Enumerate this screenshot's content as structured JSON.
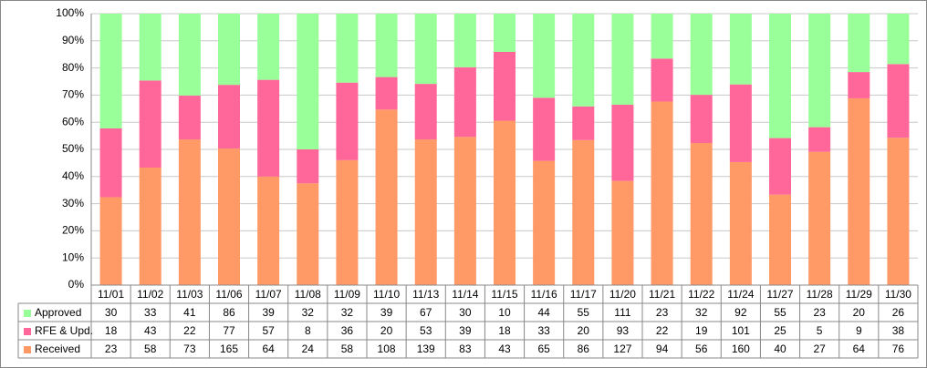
{
  "chart_data": {
    "type": "bar",
    "stack": "percent",
    "categories": [
      "11/01",
      "11/02",
      "11/03",
      "11/06",
      "11/07",
      "11/08",
      "11/09",
      "11/10",
      "11/13",
      "11/14",
      "11/15",
      "11/16",
      "11/17",
      "11/20",
      "11/21",
      "11/22",
      "11/24",
      "11/27",
      "11/28",
      "11/29",
      "11/30"
    ],
    "series": [
      {
        "name": "Received",
        "color": "#ff9966",
        "values": [
          23,
          58,
          73,
          165,
          64,
          24,
          58,
          108,
          139,
          83,
          43,
          65,
          86,
          127,
          94,
          56,
          160,
          40,
          27,
          64,
          76
        ]
      },
      {
        "name": "RFE & Upd.",
        "color": "#ff6699",
        "values": [
          18,
          43,
          22,
          77,
          57,
          8,
          36,
          20,
          53,
          39,
          18,
          33,
          20,
          93,
          22,
          19,
          101,
          25,
          5,
          9,
          38
        ]
      },
      {
        "name": "Approved",
        "color": "#99ff99",
        "values": [
          30,
          33,
          41,
          86,
          39,
          32,
          32,
          39,
          67,
          30,
          10,
          44,
          55,
          111,
          23,
          32,
          92,
          55,
          23,
          20,
          26
        ]
      }
    ],
    "ylim": [
      0,
      100
    ],
    "yticks": [
      {
        "value": 0,
        "label": "0%"
      },
      {
        "value": 10,
        "label": "10%"
      },
      {
        "value": 20,
        "label": "20%"
      },
      {
        "value": 30,
        "label": "30%"
      },
      {
        "value": 40,
        "label": "40%"
      },
      {
        "value": 50,
        "label": "50%"
      },
      {
        "value": 60,
        "label": "60%"
      },
      {
        "value": 70,
        "label": "70%"
      },
      {
        "value": 80,
        "label": "80%"
      },
      {
        "value": 90,
        "label": "90%"
      },
      {
        "value": 100,
        "label": "100%"
      }
    ],
    "grid": true
  }
}
